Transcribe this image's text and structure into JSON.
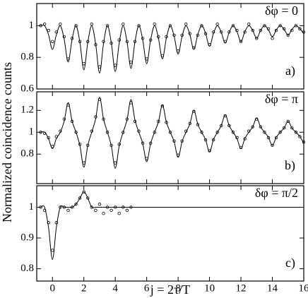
{
  "chart_data": [
    {
      "type": "line",
      "annotations": [
        "δφ = 0",
        "a)"
      ],
      "xlim": [
        -1,
        16
      ],
      "xticks": [
        0,
        2,
        4,
        6,
        8,
        10,
        12,
        14,
        16
      ],
      "ylim": [
        0.6,
        1.14
      ],
      "yticks": [
        0.6,
        0.8,
        1
      ],
      "x": [
        -0.75,
        -0.5,
        -0.25,
        0,
        0.25,
        0.5,
        0.75,
        1,
        1.25,
        1.5,
        1.75,
        2,
        2.25,
        2.5,
        2.75,
        3,
        3.25,
        3.5,
        3.75,
        4,
        4.25,
        4.5,
        4.75,
        5,
        5.25,
        5.5,
        5.75,
        6,
        6.25,
        6.5,
        6.75,
        7,
        7.25,
        7.5,
        7.75,
        8,
        8.25,
        8.5,
        8.75,
        9,
        9.25,
        9.5,
        9.75,
        10,
        10.25,
        10.5,
        10.75,
        11,
        11.25,
        11.5,
        11.75,
        12,
        12.25,
        12.5,
        12.75,
        13,
        13.25,
        13.5,
        13.75,
        14,
        14.25,
        14.5,
        14.75,
        15,
        15.25,
        15.5,
        15.75,
        16
      ],
      "series": [
        {
          "style": "line",
          "color": "#000000",
          "values": [
            1,
            1,
            0.943,
            0.85,
            0.943,
            1,
            0.913,
            0.77,
            0.913,
            1,
            0.894,
            0.72,
            0.894,
            1,
            0.886,
            0.7,
            0.886,
            1,
            0.89,
            0.71,
            0.89,
            1,
            0.897,
            0.73,
            0.897,
            1,
            0.909,
            0.76,
            0.909,
            1,
            0.92,
            0.79,
            0.92,
            1,
            0.932,
            0.82,
            0.932,
            1,
            0.943,
            0.85,
            0.943,
            1,
            0.951,
            0.87,
            0.951,
            1,
            0.958,
            0.89,
            0.958,
            1,
            0.962,
            0.9,
            0.962,
            1,
            0.97,
            0.92,
            0.97,
            1,
            0.973,
            0.93,
            0.973,
            1,
            0.977,
            0.94,
            0.977,
            1,
            0.981,
            0.95
          ]
        },
        {
          "style": "circle",
          "color": "#000000",
          "values": [
            1,
            1.01,
            0.97,
            0.9,
            0.96,
            1.01,
            0.93,
            0.79,
            0.92,
            1,
            0.9,
            0.76,
            0.9,
            1.01,
            0.88,
            0.74,
            0.9,
            1,
            0.89,
            0.75,
            0.91,
            1.01,
            0.9,
            0.77,
            0.9,
            1,
            0.92,
            0.79,
            0.91,
            1.01,
            0.93,
            0.81,
            0.93,
            1,
            0.94,
            0.84,
            0.94,
            1.01,
            0.95,
            0.86,
            0.94,
            1,
            0.95,
            0.88,
            0.96,
            1.01,
            0.96,
            0.9,
            0.96,
            1,
            0.97,
            0.9,
            0.96,
            1.01,
            0.97,
            0.92,
            0.97,
            1,
            0.98,
            0.92,
            0.97,
            1,
            0.98,
            0.94,
            0.97,
            1,
            0.98,
            0.96
          ]
        }
      ]
    },
    {
      "type": "line",
      "annotations": [
        "δφ = π",
        "b)"
      ],
      "ylabel": "Normalized coincidence counts",
      "xlim": [
        -1,
        16
      ],
      "xticks": [
        0,
        2,
        4,
        6,
        8,
        10,
        12,
        14,
        16
      ],
      "ylim": [
        0.53,
        1.37
      ],
      "yticks": [
        0.8,
        1,
        1.2
      ],
      "x": [
        -0.75,
        -0.5,
        -0.25,
        0,
        0.25,
        0.5,
        0.75,
        1,
        1.25,
        1.5,
        1.75,
        2,
        2.25,
        2.5,
        2.75,
        3,
        3.25,
        3.5,
        3.75,
        4,
        4.25,
        4.5,
        4.75,
        5,
        5.25,
        5.5,
        5.75,
        6,
        6.25,
        6.5,
        6.75,
        7,
        7.25,
        7.5,
        7.75,
        8,
        8.25,
        8.5,
        8.75,
        9,
        9.25,
        9.5,
        9.75,
        10,
        10.25,
        10.5,
        10.75,
        11,
        11.25,
        11.5,
        11.75,
        12,
        12.25,
        12.5,
        12.75,
        13,
        13.25,
        13.5,
        13.75,
        14,
        14.25,
        14.5,
        14.75,
        15,
        15.25,
        15.5,
        15.75,
        16
      ],
      "series": [
        {
          "style": "line",
          "color": "#000000",
          "values": [
            1,
            1,
            0.943,
            0.85,
            0.943,
            1,
            1.103,
            1.27,
            1.103,
            1,
            0.878,
            0.68,
            0.878,
            1,
            1.122,
            1.32,
            1.122,
            1,
            0.875,
            0.67,
            0.875,
            1,
            1.114,
            1.3,
            1.114,
            1,
            0.897,
            0.73,
            0.897,
            1,
            1.095,
            1.25,
            1.095,
            1,
            0.913,
            0.77,
            0.913,
            1,
            1.076,
            1.2,
            1.076,
            1,
            0.932,
            0.82,
            0.932,
            1,
            1.061,
            1.16,
            1.061,
            1,
            0.943,
            0.85,
            0.943,
            1,
            1.049,
            1.13,
            1.049,
            1,
            0.954,
            0.88,
            0.954,
            1,
            1.038,
            1.1,
            1.038,
            1,
            0.962,
            0.9
          ]
        },
        {
          "style": "circle",
          "color": "#000000",
          "values": [
            1,
            0.99,
            0.95,
            0.87,
            0.96,
            1.01,
            1.12,
            1.25,
            1.1,
            1,
            0.89,
            0.72,
            0.88,
            1.01,
            1.14,
            1.3,
            1.12,
            1,
            0.88,
            0.72,
            0.89,
            1,
            1.12,
            1.27,
            1.1,
            1.01,
            0.9,
            0.76,
            0.9,
            1,
            1.1,
            1.24,
            1.09,
            1,
            0.92,
            0.79,
            0.92,
            1.01,
            1.08,
            1.19,
            1.07,
            1,
            0.93,
            0.83,
            0.93,
            1,
            1.06,
            1.15,
            1.06,
            1,
            0.95,
            0.86,
            0.94,
            1.01,
            1.05,
            1.12,
            1.05,
            1,
            0.95,
            0.88,
            0.95,
            1,
            1.04,
            1.1,
            1.04,
            1,
            0.96,
            0.91
          ]
        }
      ]
    },
    {
      "type": "line",
      "annotations": [
        "δφ = π/2",
        "c)"
      ],
      "xlabel": "j = 2τ/T",
      "xlim": [
        -1,
        16
      ],
      "xticks": [
        0,
        2,
        4,
        6,
        8,
        10,
        12,
        14,
        16
      ],
      "ylim": [
        0.76,
        1.07
      ],
      "yticks": [
        0.8,
        0.9,
        1
      ],
      "x": [
        -0.75,
        -0.5,
        -0.25,
        0,
        0.25,
        0.5,
        0.75,
        1,
        1.25,
        1.5,
        1.75,
        2,
        2.25,
        2.5,
        2.75,
        3,
        3.25,
        3.5,
        3.75,
        4,
        4.25,
        4.5,
        4.75,
        5,
        5.25,
        5.5,
        5.75,
        6,
        6.25,
        6.5,
        6.75,
        7,
        7.25,
        7.5,
        7.75,
        8,
        8.25,
        8.5,
        8.75,
        9,
        9.25,
        9.5,
        9.75,
        10,
        10.25,
        10.5,
        10.75,
        11,
        11.25,
        11.5,
        11.75,
        12,
        12.25,
        12.5,
        12.75,
        13,
        13.25,
        13.5,
        13.75,
        14,
        14.25,
        14.5,
        14.75,
        15,
        15.25,
        15.5,
        15.75,
        16
      ],
      "series": [
        {
          "style": "line",
          "color": "#000000",
          "values": [
            1,
            1,
            0.935,
            0.83,
            0.935,
            1,
            1,
            1,
            1,
            1.01,
            1.03,
            1.05,
            1.03,
            1,
            1,
            1,
            1,
            1,
            1,
            1,
            1,
            1,
            1,
            1,
            1,
            1,
            1,
            1,
            1,
            1,
            1,
            1,
            1,
            1,
            1,
            1,
            1,
            1,
            1,
            1,
            1,
            1,
            1,
            1,
            1,
            1,
            1,
            1,
            1,
            1,
            1,
            1,
            1,
            1,
            1,
            1,
            1,
            1,
            1,
            1,
            1,
            1,
            1,
            1,
            1,
            1,
            1,
            1
          ]
        },
        {
          "style": "circle",
          "color": "#000000",
          "values": [
            1,
            0.99,
            0.95,
            0.86,
            0.95,
            1,
            1,
            0.99,
            1,
            1.01,
            1.03,
            1.05,
            1.03,
            1,
            0.99,
            1.01,
            0.98,
            1,
            0.99,
            1,
            0.98,
            1,
            0.99,
            1,
            null,
            null,
            null,
            null,
            null,
            null,
            null,
            null,
            null,
            null,
            null,
            null,
            null,
            null,
            null,
            null,
            null,
            null,
            null,
            null,
            null,
            null,
            null,
            null,
            null,
            null,
            null,
            null,
            null,
            null,
            null,
            null,
            null,
            null,
            null,
            null,
            null,
            null,
            null,
            null,
            null,
            null,
            null,
            null
          ]
        }
      ]
    }
  ]
}
